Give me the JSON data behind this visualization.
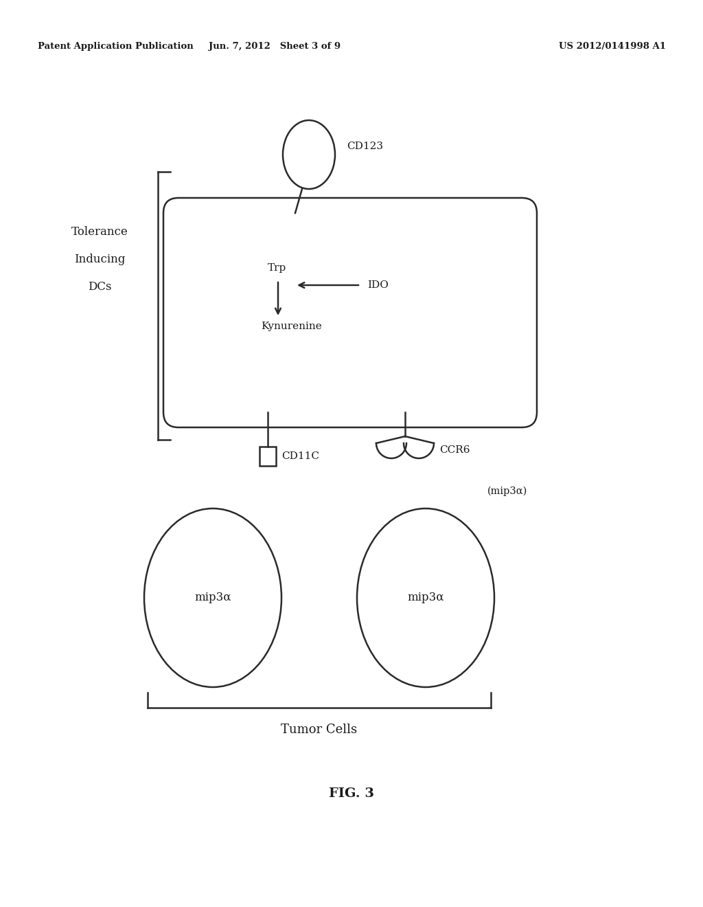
{
  "bg_color": "#ffffff",
  "header_left": "Patent Application Publication",
  "header_mid": "Jun. 7, 2012   Sheet 3 of 9",
  "header_right": "US 2012/0141998 A1",
  "box_label_trp": "Trp",
  "box_label_ido": "IDO",
  "box_label_kyn": "Kynurenine",
  "cd123_label": "CD123",
  "cd11c_label": "CD11C",
  "ccr6_label": "CCR6",
  "mip3a_left": "mip3α",
  "mip3a_right": "mip3α",
  "mip3a_top_right": "(mip3α)",
  "tumor_cells_label": "Tumor Cells",
  "fig_label": "FIG. 3",
  "text_color": "#1a1a1a",
  "line_color": "#2a2a2a",
  "tolerance_lines": [
    "Tolerance",
    "Inducing",
    "DCs"
  ]
}
